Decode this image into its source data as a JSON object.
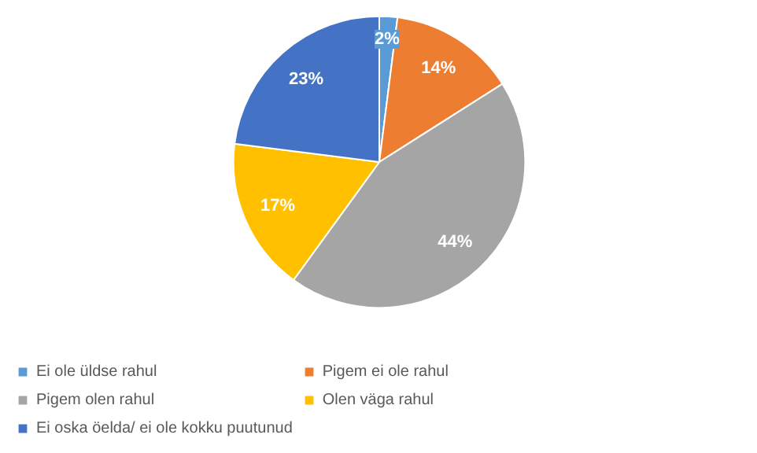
{
  "chart_data": {
    "type": "pie",
    "categories": [
      "Ei ole üldse rahul",
      "Pigem ei ole rahul",
      "Pigem olen rahul",
      "Olen väga rahul",
      "Ei oska öelda/ ei ole kokku puutunud"
    ],
    "values": [
      2,
      14,
      44,
      17,
      23
    ],
    "colors": [
      "#5b9bd5",
      "#ed7d31",
      "#a5a5a5",
      "#ffc000",
      "#4472c4"
    ],
    "value_labels": [
      "2%",
      "14%",
      "44%",
      "17%",
      "23%"
    ],
    "legend": "bottom"
  }
}
